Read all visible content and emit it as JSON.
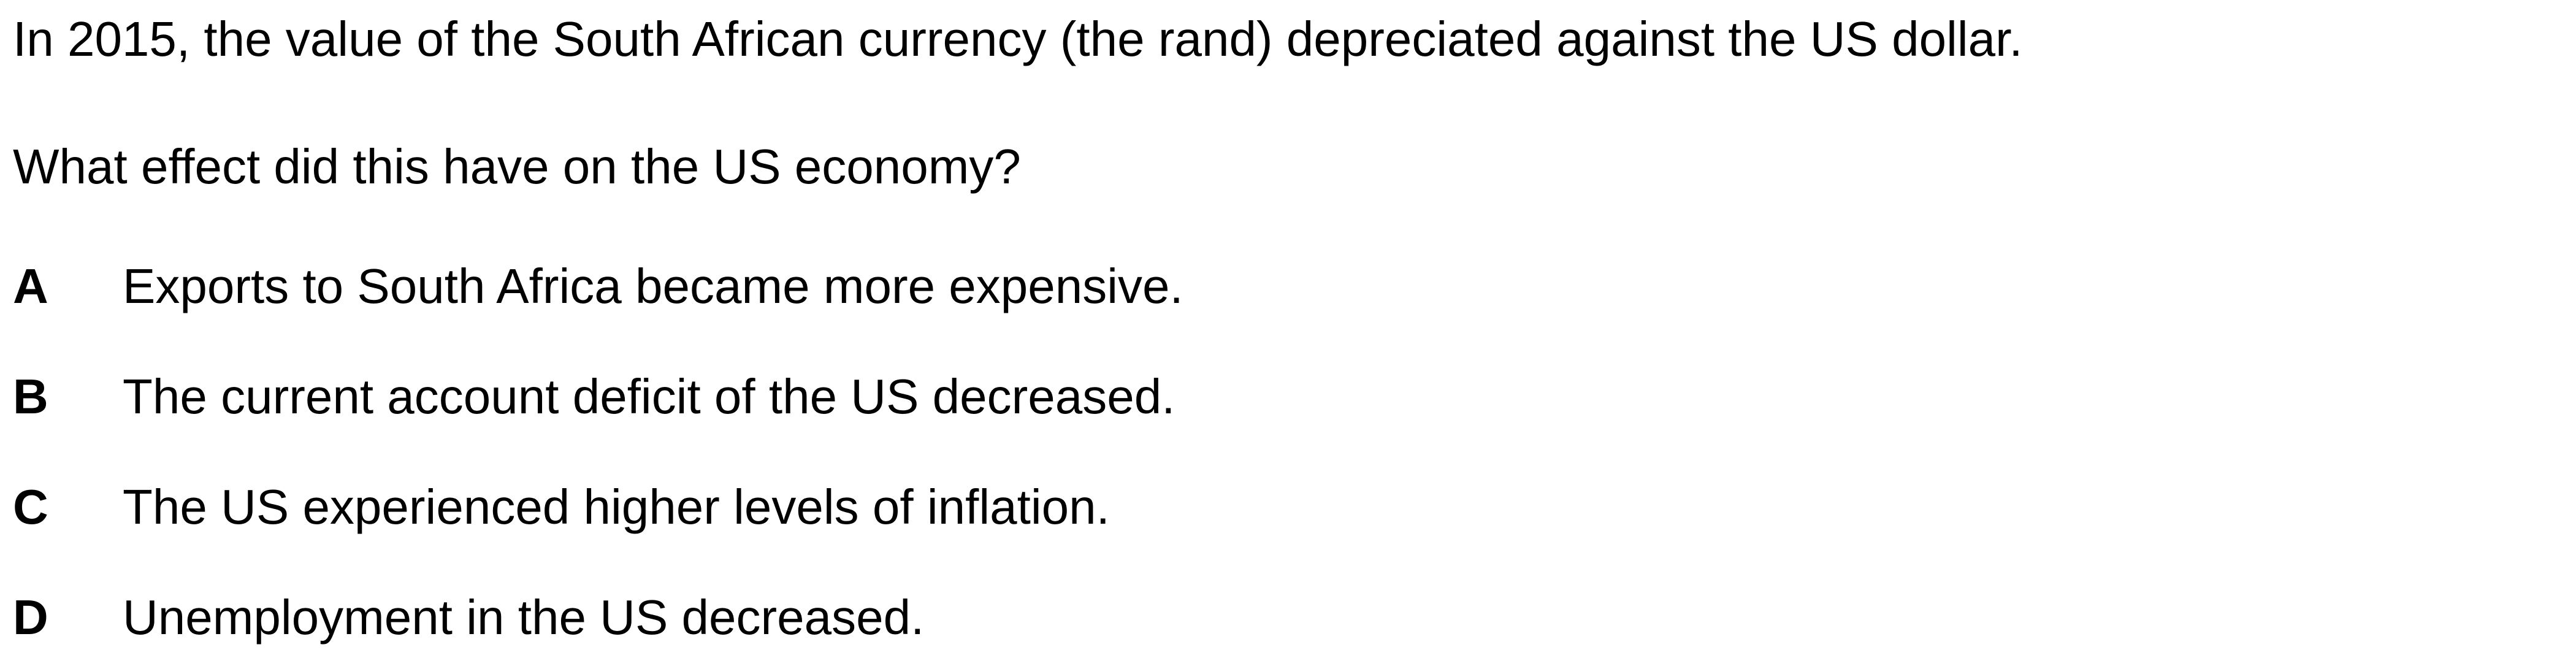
{
  "question": {
    "intro": "In 2015, the value of the South African currency (the rand) depreciated against the US dollar.",
    "prompt": "What effect did this have on the US economy?"
  },
  "options": [
    {
      "letter": "A",
      "text": "Exports to South Africa became more expensive."
    },
    {
      "letter": "B",
      "text": "The current account deficit of the US decreased."
    },
    {
      "letter": "C",
      "text": "The US experienced higher levels of inflation."
    },
    {
      "letter": "D",
      "text": "Unemployment in the US decreased."
    }
  ]
}
